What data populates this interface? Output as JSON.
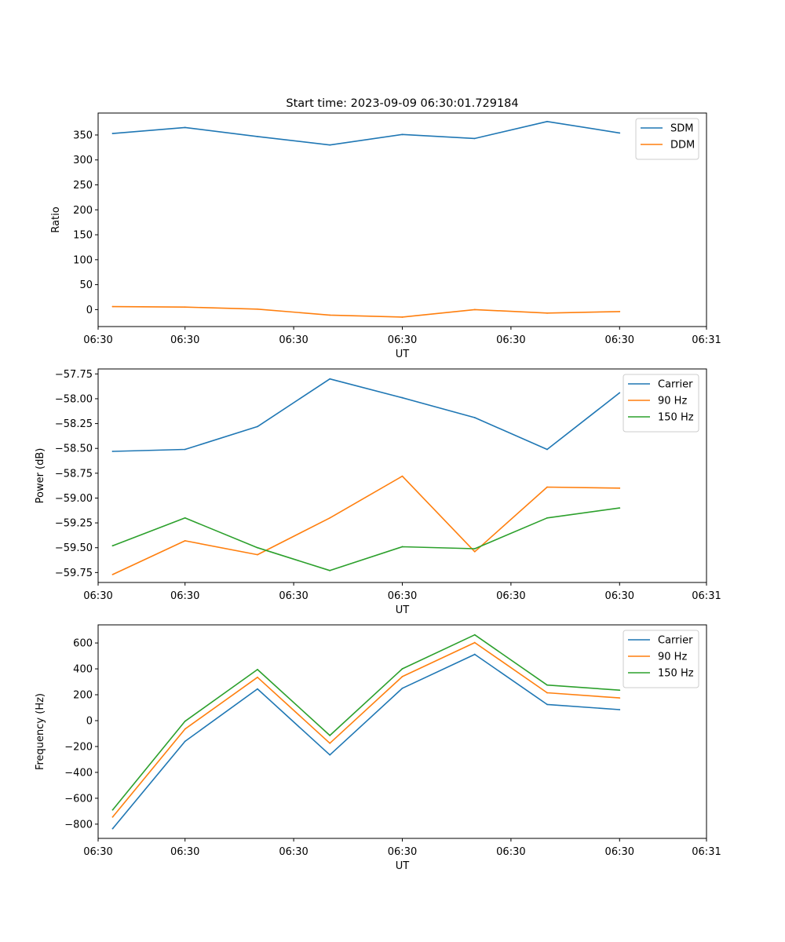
{
  "figure_title": "Start time: 2023-09-09 06:30:01.729184",
  "colors": {
    "blue": "#1f77b4",
    "orange": "#ff7f0e",
    "green": "#2ca02c"
  },
  "chart_data": [
    {
      "type": "line",
      "title": "Start time: 2023-09-09 06:30:01.729184",
      "xlabel": "UT",
      "ylabel": "Ratio",
      "x": [
        1,
        2,
        3,
        4,
        5,
        6,
        7,
        8
      ],
      "xlim": [
        0.8,
        9.2
      ],
      "x_ticks": [
        0.8,
        2,
        3.5,
        5,
        6.5,
        8,
        9.2
      ],
      "x_tick_labels": [
        "06:30",
        "06:30",
        "06:30",
        "06:30",
        "06:30",
        "06:30",
        "06:31"
      ],
      "ylim": [
        -34,
        394
      ],
      "y_ticks": [
        0,
        50,
        100,
        150,
        200,
        250,
        300,
        350
      ],
      "y_tick_labels": [
        "0",
        "50",
        "100",
        "150",
        "200",
        "250",
        "300",
        "350"
      ],
      "legend_position": "top-right",
      "series": [
        {
          "name": "SDM",
          "color": "#1f77b4",
          "values": [
            353,
            365,
            347,
            330,
            351,
            343,
            377,
            354
          ]
        },
        {
          "name": "DDM",
          "color": "#ff7f0e",
          "values": [
            6,
            5,
            1,
            -11,
            -15,
            0,
            -7,
            -4
          ]
        }
      ]
    },
    {
      "type": "line",
      "title": "",
      "xlabel": "UT",
      "ylabel": "Power (dB)",
      "x": [
        1,
        2,
        3,
        4,
        5,
        6,
        7,
        8
      ],
      "xlim": [
        0.8,
        9.2
      ],
      "x_ticks": [
        0.8,
        2,
        3.5,
        5,
        6.5,
        8,
        9.2
      ],
      "x_tick_labels": [
        "06:30",
        "06:30",
        "06:30",
        "06:30",
        "06:30",
        "06:30",
        "06:31"
      ],
      "ylim": [
        -59.85,
        -57.7
      ],
      "y_ticks": [
        -59.75,
        -59.5,
        -59.25,
        -59.0,
        -58.75,
        -58.5,
        -58.25,
        -58.0,
        -57.75
      ],
      "y_tick_labels": [
        "−59.75",
        "−59.50",
        "−59.25",
        "−59.00",
        "−58.75",
        "−58.50",
        "−58.25",
        "−58.00",
        "−57.75"
      ],
      "legend_position": "top-right",
      "series": [
        {
          "name": "Carrier",
          "color": "#1f77b4",
          "values": [
            -58.53,
            -58.51,
            -58.28,
            -57.8,
            -57.99,
            -58.19,
            -58.51,
            -57.94
          ]
        },
        {
          "name": "90 Hz",
          "color": "#ff7f0e",
          "values": [
            -59.77,
            -59.43,
            -59.57,
            -59.2,
            -58.78,
            -59.54,
            -58.89,
            -58.9
          ]
        },
        {
          "name": "150 Hz",
          "color": "#2ca02c",
          "values": [
            -59.48,
            -59.2,
            -59.5,
            -59.73,
            -59.49,
            -59.51,
            -59.2,
            -59.1
          ]
        }
      ]
    },
    {
      "type": "line",
      "title": "",
      "xlabel": "UT",
      "ylabel": "Frequency (Hz)",
      "x": [
        1,
        2,
        3,
        4,
        5,
        6,
        7,
        8
      ],
      "xlim": [
        0.8,
        9.2
      ],
      "x_ticks": [
        0.8,
        2,
        3.5,
        5,
        6.5,
        8,
        9.2
      ],
      "x_tick_labels": [
        "06:30",
        "06:30",
        "06:30",
        "06:30",
        "06:30",
        "06:30",
        "06:31"
      ],
      "ylim": [
        -910,
        740
      ],
      "y_ticks": [
        -800,
        -600,
        -400,
        -200,
        0,
        200,
        400,
        600
      ],
      "y_tick_labels": [
        "−800",
        "−600",
        "−400",
        "−200",
        "0",
        "200",
        "400",
        "600"
      ],
      "legend_position": "top-right",
      "series": [
        {
          "name": "Carrier",
          "color": "#1f77b4",
          "values": [
            -835,
            -160,
            245,
            -265,
            250,
            512,
            125,
            85
          ]
        },
        {
          "name": "90 Hz",
          "color": "#ff7f0e",
          "values": [
            -745,
            -65,
            335,
            -175,
            340,
            603,
            215,
            175
          ]
        },
        {
          "name": "150 Hz",
          "color": "#2ca02c",
          "values": [
            -690,
            -5,
            395,
            -115,
            400,
            663,
            275,
            235
          ]
        }
      ]
    }
  ]
}
